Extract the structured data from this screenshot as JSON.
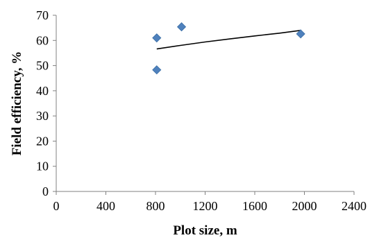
{
  "chart_data": {
    "type": "scatter",
    "title": "",
    "xlabel": "Plot size,  m",
    "ylabel": "Field  efficiency, %",
    "xlim": [
      0,
      2400
    ],
    "ylim": [
      0,
      70
    ],
    "x_ticks": [
      0,
      400,
      800,
      1200,
      1600,
      2000,
      2400
    ],
    "y_ticks": [
      0,
      10,
      20,
      30,
      40,
      50,
      60,
      70
    ],
    "grid": false,
    "legend": "none",
    "series": [
      {
        "type": "scatter",
        "marker": "diamond",
        "color": "#4f81bd",
        "points": [
          {
            "x": 810,
            "y": 61.0
          },
          {
            "x": 810,
            "y": 48.3
          },
          {
            "x": 1010,
            "y": 65.4
          },
          {
            "x": 1970,
            "y": 62.6
          }
        ]
      },
      {
        "type": "trendline",
        "color": "#000000",
        "points": [
          {
            "x": 810,
            "y": 56.6
          },
          {
            "x": 1000,
            "y": 58.0
          },
          {
            "x": 1200,
            "y": 59.4
          },
          {
            "x": 1400,
            "y": 60.6
          },
          {
            "x": 1600,
            "y": 61.8
          },
          {
            "x": 1800,
            "y": 62.9
          },
          {
            "x": 1970,
            "y": 64.0
          }
        ]
      }
    ]
  }
}
